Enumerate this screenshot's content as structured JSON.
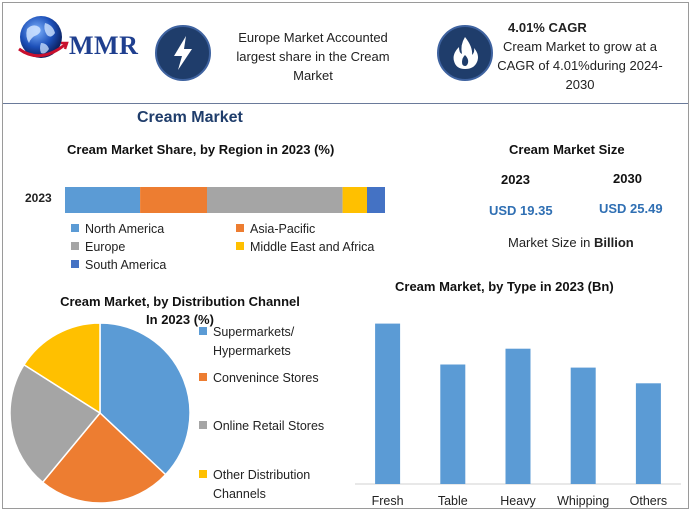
{
  "header": {
    "logo_text": "MMR",
    "box1_text_lines": [
      "Europe Market Accounted",
      "largest share in the Cream",
      "Market"
    ],
    "box2_title": "4.01% CAGR",
    "box2_text_lines": [
      "Cream Market to grow at a",
      "CAGR of 4.01%during 2024-",
      "2030"
    ]
  },
  "main_title": "Cream Market",
  "size_panel": {
    "title": "Cream Market Size",
    "year_a": "2023",
    "year_b": "2030",
    "value_a": "USD 19.35",
    "value_b": "USD 25.49",
    "note_prefix": "Market Size in",
    "note_bold": "Billion"
  },
  "colors": {
    "north_america": "#5b9bd5",
    "asia_pacific": "#ed7d31",
    "europe": "#a5a5a5",
    "middle_east_africa": "#ffc000",
    "south_america": "#4472c4",
    "bar": "#5b9bd5"
  },
  "chart_data": [
    {
      "type": "bar",
      "orientation": "horizontal-stacked",
      "title": "Cream Market Share, by Region in 2023 (%)",
      "categories": [
        "2023"
      ],
      "series": [
        {
          "name": "North America",
          "values": [
            23
          ]
        },
        {
          "name": "Asia-Pacific",
          "values": [
            20.5
          ]
        },
        {
          "name": "Europe",
          "values": [
            41.5
          ]
        },
        {
          "name": "Middle East and Africa",
          "values": [
            7.5
          ]
        },
        {
          "name": "South America",
          "values": [
            5.5
          ]
        }
      ],
      "xlim": [
        0,
        98
      ],
      "legend": "bottom"
    },
    {
      "type": "pie",
      "title_lines": [
        "Cream Market, by Distribution Channel",
        "In 2023 (%)"
      ],
      "labels": [
        "Supermarkets/ Hypermarkets",
        "Convenince Stores",
        "Online Retail Stores",
        "Other Distribution Channels"
      ],
      "legend_lines": [
        [
          "Supermarkets/",
          "Hypermarkets"
        ],
        [
          "Convenince Stores"
        ],
        [
          "Online Retail Stores"
        ],
        [
          "Other Distribution",
          "Channels"
        ]
      ],
      "values": [
        37,
        24,
        23,
        16
      ],
      "colors": [
        "#5b9bd5",
        "#ed7d31",
        "#a5a5a5",
        "#ffc000"
      ],
      "legend": "right"
    },
    {
      "type": "bar",
      "title": "Cream Market, by Type in 2023 (Bn)",
      "categories": [
        "Fresh",
        "Table",
        "Heavy",
        "Whipping",
        "Others"
      ],
      "values": [
        5.1,
        3.8,
        4.3,
        3.7,
        3.2
      ],
      "ylim": [
        0,
        5.5
      ],
      "xlabel": "",
      "ylabel": ""
    }
  ]
}
